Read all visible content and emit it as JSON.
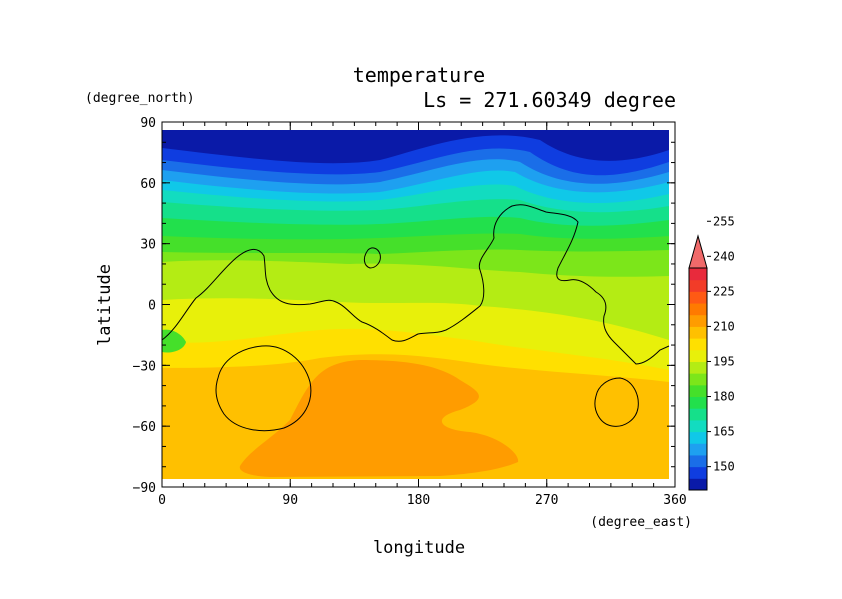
{
  "chart_data": {
    "type": "heatmap",
    "title": "temperature",
    "subtitle": "Ls = 271.60349 degree",
    "xlabel": "longitude",
    "ylabel": "latitude",
    "x_units": "(degree_east)",
    "y_units": "(degree_north)",
    "xlim": [
      0,
      360
    ],
    "ylim": [
      -90,
      90
    ],
    "data_extent": {
      "lon": [
        0,
        356
      ],
      "lat": [
        -85,
        85
      ]
    },
    "x_ticks": [
      "0",
      "90",
      "180",
      "270",
      "360"
    ],
    "y_ticks": [
      "90",
      "60",
      "30",
      "0",
      "−30",
      "−60",
      "−90"
    ],
    "colorbar": {
      "labels": [
        "255",
        "240",
        "225",
        "210",
        "195",
        "180",
        "165",
        "150"
      ],
      "label_values": [
        255,
        240,
        225,
        210,
        195,
        180,
        165,
        150
      ],
      "levels_min": 140,
      "levels_step": 5,
      "colors": [
        "#0a1aa8",
        "#0f3de0",
        "#1a6ee8",
        "#1ea0f0",
        "#10c8e8",
        "#12dcc0",
        "#15e08a",
        "#22e04c",
        "#45e02a",
        "#7ce61a",
        "#b4ec14",
        "#e8f00a",
        "#ffe000",
        "#ffc000",
        "#ff9c00",
        "#ff7a00",
        "#ff5a14",
        "#f23c28",
        "#e82a3c",
        "#f06a6a"
      ],
      "overflow_arrow": "top"
    },
    "contour_note": "topography outline (continent-like curves)",
    "palette": {
      "frame": "#000000",
      "background": "#ffffff"
    }
  }
}
